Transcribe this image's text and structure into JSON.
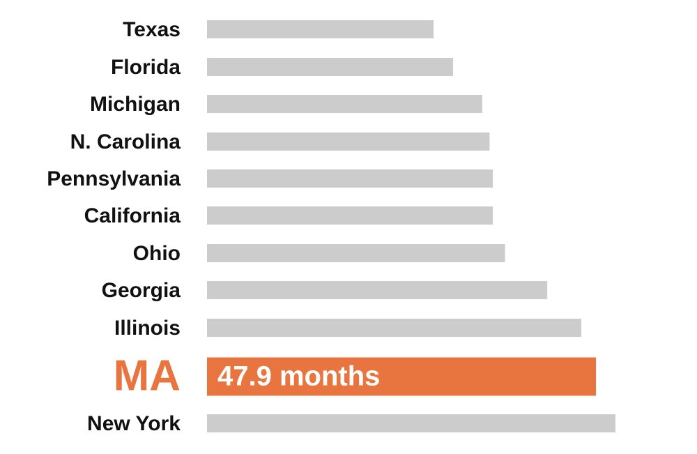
{
  "chart_data": {
    "type": "bar",
    "orientation": "horizontal",
    "categories": [
      "Texas",
      "Florida",
      "Michigan",
      "N. Carolina",
      "Pennsylvania",
      "California",
      "Ohio",
      "Georgia",
      "Illinois",
      "MA",
      "New York"
    ],
    "values": [
      27.9,
      30.3,
      33.9,
      34.8,
      35.2,
      35.2,
      36.7,
      41.9,
      46.1,
      47.9,
      50.3
    ],
    "value_labels": [
      null,
      null,
      null,
      null,
      null,
      null,
      null,
      null,
      null,
      "47.9 months",
      null
    ],
    "colors": [
      "#cccccc",
      "#cccccc",
      "#cccccc",
      "#cccccc",
      "#cccccc",
      "#cccccc",
      "#cccccc",
      "#cccccc",
      "#cccccc",
      "#e8753f",
      "#cccccc"
    ]
  }
}
